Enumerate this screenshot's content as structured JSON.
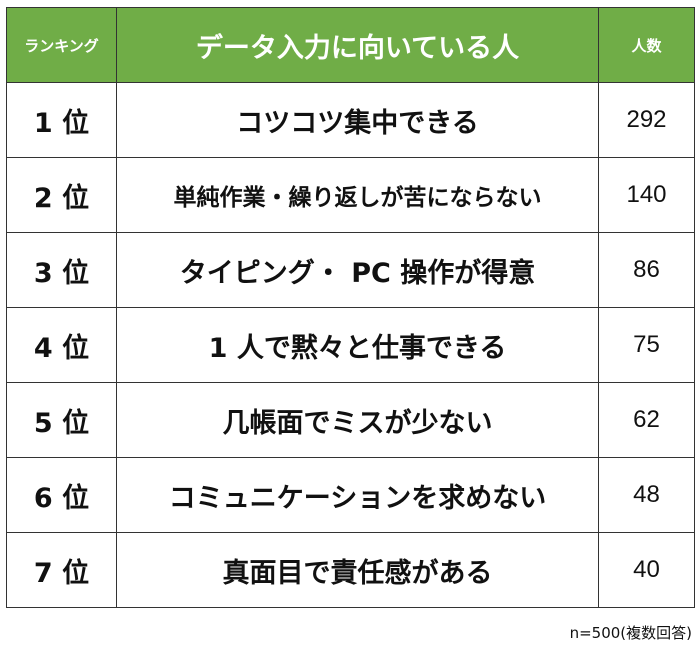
{
  "header": {
    "rank_label": "ランキング",
    "item_label": "データ入力に向いている人",
    "count_label": "人数"
  },
  "rows": [
    {
      "rank": "1 位",
      "item": "コツコツ集中できる",
      "count": "292"
    },
    {
      "rank": "2 位",
      "item": "単純作業・繰り返しが苦にならない",
      "count": "140"
    },
    {
      "rank": "3 位",
      "item": "タイピング・ PC 操作が得意",
      "count": "86"
    },
    {
      "rank": "4 位",
      "item": "1 人で黙々と仕事できる",
      "count": "75"
    },
    {
      "rank": "5 位",
      "item": "几帳面でミスが少ない",
      "count": "62"
    },
    {
      "rank": "6 位",
      "item": "コミュニケーションを求めない",
      "count": "48"
    },
    {
      "rank": "7 位",
      "item": "真面目で責任感がある",
      "count": "40"
    }
  ],
  "note": "n=500(複数回答)",
  "colors": {
    "header_bg": "#70ad47",
    "header_text": "#ffffff",
    "border": "#333333"
  },
  "chart_data": {
    "type": "table",
    "columns": [
      "ランキング",
      "データ入力に向いている人",
      "人数"
    ],
    "rows": [
      [
        "1 位",
        "コツコツ集中できる",
        292
      ],
      [
        "2 位",
        "単純作業・繰り返しが苦にならない",
        140
      ],
      [
        "3 位",
        "タイピング・ PC 操作が得意",
        86
      ],
      [
        "4 位",
        "1 人で黙々と仕事できる",
        75
      ],
      [
        "5 位",
        "几帳面でミスが少ない",
        62
      ],
      [
        "6 位",
        "コミュニケーションを求めない",
        48
      ],
      [
        "7 位",
        "真面目で責任感がある",
        40
      ]
    ]
  }
}
